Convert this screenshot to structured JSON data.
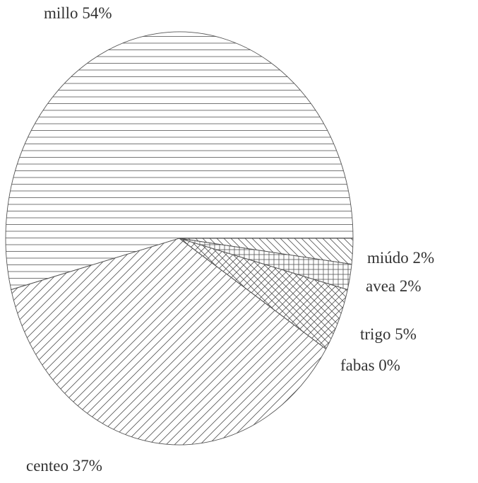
{
  "chart_data": {
    "type": "pie",
    "categories": [
      "millo",
      "miúdo",
      "avea",
      "trigo",
      "fabas",
      "centeo"
    ],
    "values": [
      54,
      2,
      2,
      5,
      0,
      37
    ],
    "value_labels": [
      "54%",
      "2%",
      "2%",
      "5%",
      "0%",
      "37%"
    ],
    "patterns": [
      "horizontal",
      "back-diagonal",
      "grid",
      "cross",
      "none",
      "diagonal"
    ],
    "color": "#555555"
  }
}
